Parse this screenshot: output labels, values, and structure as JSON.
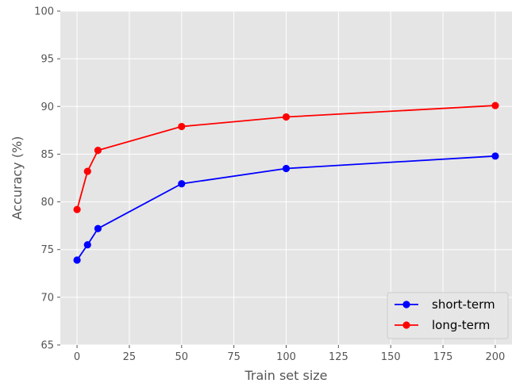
{
  "chart_data": {
    "type": "line",
    "xlabel": "Train set size",
    "ylabel": "Accuracy (%)",
    "xlim": [
      -8,
      208
    ],
    "ylim": [
      65,
      100
    ],
    "xticks": [
      0,
      25,
      50,
      75,
      100,
      125,
      150,
      175,
      200
    ],
    "yticks": [
      65,
      70,
      75,
      80,
      85,
      90,
      95,
      100
    ],
    "grid": true,
    "legend_position": "bottom-right",
    "series": [
      {
        "name": "short-term",
        "color": "#0000ff",
        "x": [
          0,
          5,
          10,
          50,
          100,
          200
        ],
        "y": [
          73.9,
          75.5,
          77.2,
          81.9,
          83.5,
          84.8
        ]
      },
      {
        "name": "long-term",
        "color": "#ff0000",
        "x": [
          0,
          5,
          10,
          50,
          100,
          200
        ],
        "y": [
          79.2,
          83.2,
          85.4,
          87.9,
          88.9,
          90.1
        ]
      }
    ]
  }
}
